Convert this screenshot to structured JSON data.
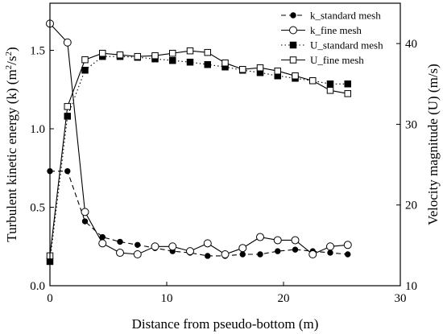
{
  "chart_data": {
    "type": "line",
    "xlabel": "Distance from pseudo-bottom (m)",
    "ylabel_left": "Turbulent kinetic energy (k) (m²/s²)",
    "ylabel_right": "Velocity magnitude (U) (m/s)",
    "xlim": [
      0,
      30
    ],
    "ylim_left": [
      0,
      1.8
    ],
    "ylim_right": [
      10,
      45
    ],
    "xticks": [
      0,
      10,
      20,
      30
    ],
    "yticks_left": [
      0.0,
      0.5,
      1.0,
      1.5
    ],
    "yticks_right": [
      10,
      20,
      30,
      40
    ],
    "ytick_labels_left": [
      "0.0",
      "0.5",
      "1.0",
      "1.5"
    ],
    "grid": false,
    "legend_position": "top-right",
    "series": [
      {
        "name": "k_standard mesh",
        "axis": "left",
        "line": "dashed",
        "marker": "circle-filled",
        "x": [
          0,
          1.5,
          3,
          4.5,
          6,
          7.5,
          9,
          10.5,
          12,
          13.5,
          15,
          16.5,
          18,
          19.5,
          21,
          22.5,
          24,
          25.5
        ],
        "y": [
          0.73,
          0.73,
          0.41,
          0.31,
          0.28,
          0.26,
          0.24,
          0.22,
          0.21,
          0.19,
          0.19,
          0.2,
          0.2,
          0.22,
          0.23,
          0.22,
          0.21,
          0.2
        ]
      },
      {
        "name": "k_fine mesh",
        "axis": "left",
        "line": "solid",
        "marker": "circle-open",
        "x": [
          0,
          1.5,
          3,
          4.5,
          6,
          7.5,
          9,
          10.5,
          12,
          13.5,
          15,
          16.5,
          18,
          19.5,
          21,
          22.5,
          24,
          25.5
        ],
        "y": [
          1.67,
          1.55,
          0.47,
          0.27,
          0.21,
          0.2,
          0.25,
          0.25,
          0.22,
          0.27,
          0.2,
          0.24,
          0.31,
          0.29,
          0.29,
          0.2,
          0.25,
          0.26
        ]
      },
      {
        "name": "U_standard mesh",
        "axis": "right",
        "line": "dotted",
        "marker": "square-filled",
        "x": [
          0,
          1.5,
          3,
          4.5,
          6,
          7.5,
          9,
          10.5,
          12,
          13.5,
          15,
          16.5,
          18,
          19.5,
          21,
          22.5,
          24,
          25.5
        ],
        "y": [
          13.0,
          31.0,
          36.7,
          38.4,
          38.4,
          38.3,
          38.1,
          37.9,
          37.7,
          37.4,
          37.1,
          36.7,
          36.4,
          36.0,
          35.7,
          35.4,
          35.0,
          35.0
        ]
      },
      {
        "name": "U_fine mesh",
        "axis": "right",
        "line": "solid",
        "marker": "square-open",
        "x": [
          0,
          1.5,
          3,
          4.5,
          6,
          7.5,
          9,
          10.5,
          12,
          13.5,
          15,
          16.5,
          18,
          19.5,
          21,
          22.5,
          24,
          25.5
        ],
        "y": [
          13.7,
          32.2,
          38.0,
          38.8,
          38.6,
          38.4,
          38.5,
          38.8,
          39.1,
          38.9,
          37.6,
          36.8,
          37.0,
          36.6,
          36.0,
          35.4,
          34.2,
          33.8
        ]
      }
    ]
  }
}
